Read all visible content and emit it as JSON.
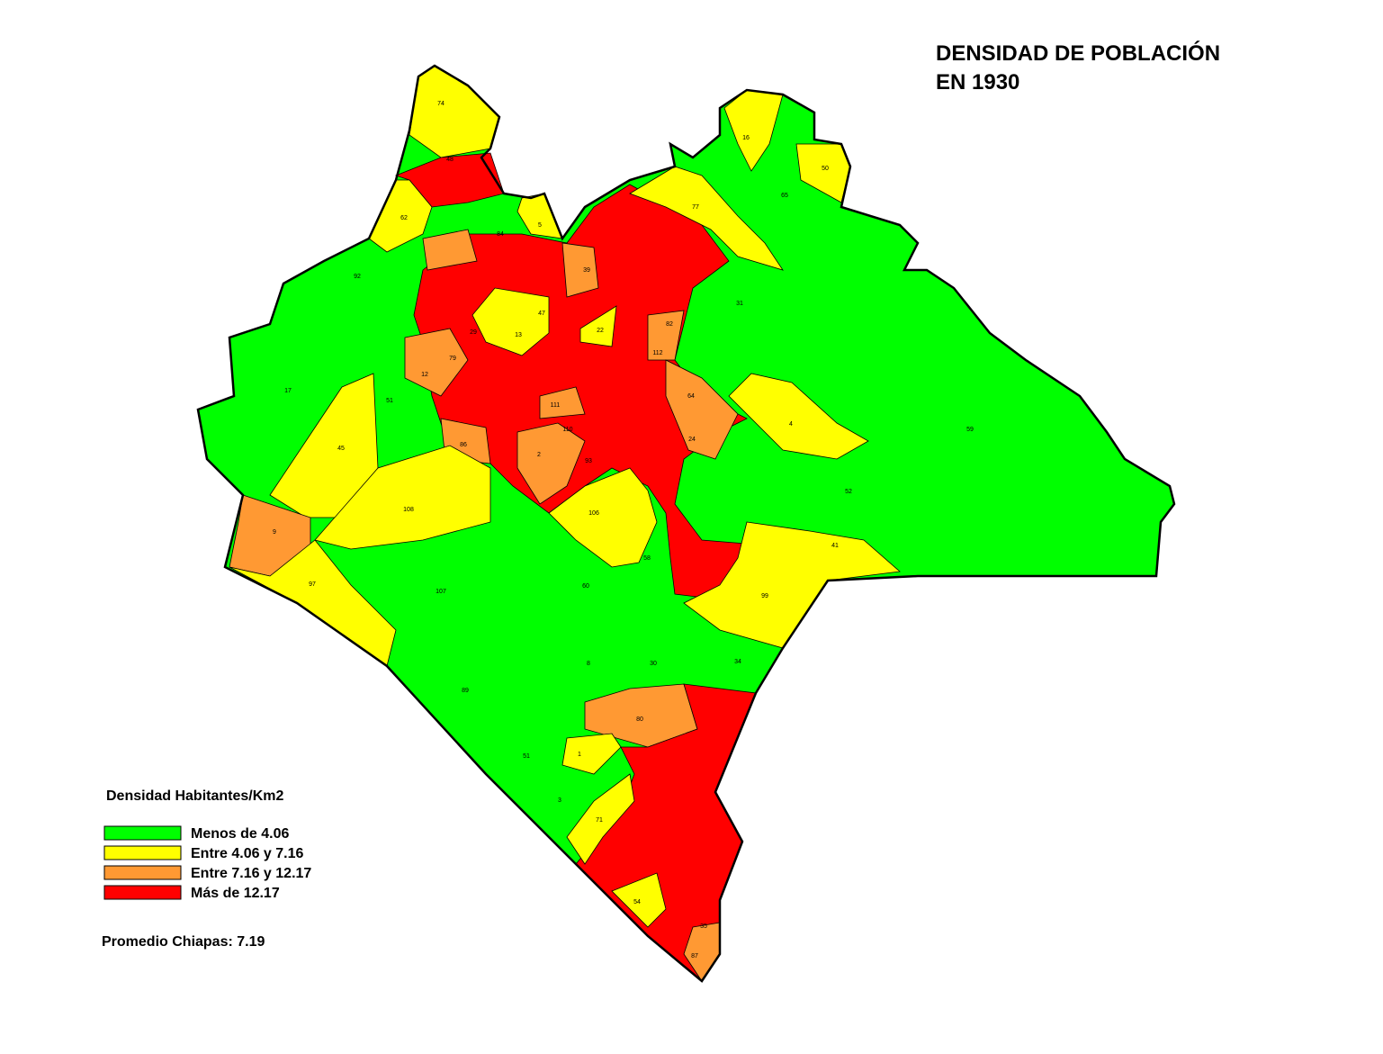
{
  "title": "DENSIDAD DE POBLACIÓN",
  "subtitle": "EN 1930",
  "legend": {
    "title": "Densidad Habitantes/Km2",
    "items": [
      {
        "label": "Menos de 4.06",
        "color": "#00ff00"
      },
      {
        "label": "Entre 4.06 y 7.16",
        "color": "#ffff00"
      },
      {
        "label": "Entre 7.16 y 12.17",
        "color": "#ff9933"
      },
      {
        "label": "Más de 12.17",
        "color": "#ff0000"
      }
    ]
  },
  "note": "Promedio Chiapas: 7.19",
  "municipality_labels": [
    "74",
    "48",
    "62",
    "5",
    "84",
    "39",
    "77",
    "16",
    "50",
    "65",
    "92",
    "31",
    "22",
    "13",
    "47",
    "29",
    "79",
    "12",
    "112",
    "82",
    "64",
    "24",
    "111",
    "110",
    "2",
    "86",
    "93",
    "17",
    "51",
    "45",
    "108",
    "106",
    "4",
    "59",
    "52",
    "41",
    "99",
    "9",
    "97",
    "107",
    "60",
    "58",
    "8",
    "30",
    "34",
    "80",
    "89",
    "51",
    "1",
    "3",
    "71",
    "54",
    "35",
    "87"
  ]
}
